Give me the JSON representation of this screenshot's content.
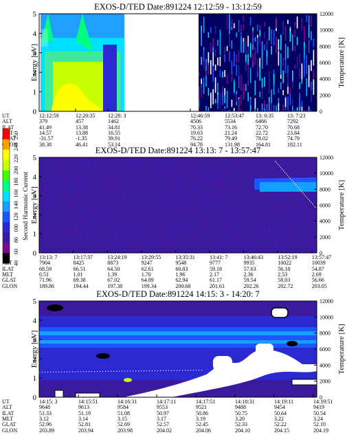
{
  "chart_data": [
    {
      "type": "heatmap",
      "title": "EXOS-D/TED   Date:891224   12:12:59 - 13:12:59",
      "ylabel": "Energy [eV]",
      "ylabel_right": "Temperature [K]",
      "ylim": [
        0,
        5
      ],
      "ylim_right": [
        0,
        12000
      ],
      "y_ticks": [
        "0",
        "1",
        "2",
        "3",
        "4",
        "5"
      ],
      "y_right_ticks": [
        "0",
        "2000",
        "4000",
        "6000",
        "8000",
        "10000",
        "12000"
      ],
      "table_row_labels": [
        "UT",
        "ALT",
        "ILAT",
        "MLT",
        "GLAT",
        "GLON"
      ],
      "table_columns": [
        [
          "12:12:59",
          "379",
          "41.49",
          "14.57",
          "-31.57",
          "38.38"
        ],
        [
          "12:20:35",
          "457",
          "13.38",
          "13.88",
          "-1.35",
          "46.41"
        ],
        [
          "12:28: 3",
          "1462",
          "34.81",
          "16.55",
          "39.91",
          "53.14"
        ],
        [
          "12:46:59",
          "4506",
          "70.33",
          "19.63",
          "76.22",
          "94.78"
        ],
        [
          "12:53:47",
          "5534",
          "73.16",
          "21.24",
          "79.49",
          "131.98"
        ],
        [
          "13: 0:35",
          "6466",
          "72.70",
          "22.72",
          "78.02",
          "164.81"
        ],
        [
          "13: 7:23",
          "7292",
          "70.68",
          "23.84",
          "74.79",
          "182.11"
        ]
      ]
    },
    {
      "type": "heatmap",
      "title": "EXOS-D/TED   Date:891224   13:13: 7 - 13:57:47",
      "ylabel": "Energy [eV]",
      "ylabel_right": "Temperature [K]",
      "ylim": [
        0,
        5
      ],
      "ylim_right": [
        0,
        12000
      ],
      "y_ticks": [
        "0",
        "1",
        "2",
        "3",
        "4",
        "5"
      ],
      "y_right_ticks": [
        "0",
        "2000",
        "4000",
        "6000",
        "8000",
        "10000",
        "12000"
      ],
      "table_row_labels": [
        "UT",
        "ALT",
        "ILAT",
        "MLT",
        "GLAT",
        "GLON"
      ],
      "table_columns": [
        [
          "13:13: 7",
          "7904",
          "68.59",
          "0.51",
          "71.96",
          "189.86"
        ],
        [
          "13:17:37",
          "8425",
          "66.51",
          "1.01",
          "69.38",
          "194.44"
        ],
        [
          "13:24:19",
          "8873",
          "64.50",
          "1.39",
          "67.02",
          "197.38"
        ],
        [
          "13:29:55",
          "9247",
          "62.61",
          "1.70",
          "64.89",
          "199.34"
        ],
        [
          "13:35:31",
          "9548",
          "60.83",
          "1.96",
          "62.94",
          "200.68"
        ],
        [
          "13:41: 7",
          "9777",
          "59.18",
          "2.17",
          "61.17",
          "201.61"
        ],
        [
          "13:46:43",
          "9935",
          "57.63",
          "2.36",
          "59.54",
          "202.26"
        ],
        [
          "13:52:19",
          "10022",
          "56.18",
          "2.53",
          "58.03",
          "202.72"
        ],
        [
          "13:57:47",
          "10039",
          "54.87",
          "2.69",
          "56.66",
          "203.05"
        ]
      ]
    },
    {
      "type": "heatmap",
      "title": "EXOS-D/TED   Date:891224   14:15: 3 - 14:20: 7",
      "ylabel": "Energy [eV]",
      "ylabel_right": "Temperature [K]",
      "ylim": [
        0,
        5
      ],
      "ylim_right": [
        0,
        12000
      ],
      "y_ticks": [
        "0",
        "1",
        "2",
        "3",
        "4",
        "5"
      ],
      "y_right_ticks": [
        "0",
        "2000",
        "4000",
        "6000",
        "8000",
        "10000",
        "12000"
      ],
      "table_row_labels": [
        "UT",
        "ALT",
        "ILAT",
        "MLT",
        "GLAT",
        "GLON"
      ],
      "table_columns": [
        [
          "14:15: 3",
          "9648",
          "51.33",
          "3.12",
          "52.96",
          "203.89"
        ],
        [
          "14:15:51",
          "9613",
          "51.19",
          "3.14",
          "52.81",
          "203.94"
        ],
        [
          "14:16:31",
          "9584",
          "51.08",
          "3.15",
          "52.69",
          "203.98"
        ],
        [
          "14:17:11",
          "9553",
          "50.97",
          "3.17",
          "52.57",
          "204.02"
        ],
        [
          "14:17:51",
          "9521",
          "50.86",
          "3.19",
          "52.45",
          "204.06"
        ],
        [
          "14:18:31",
          "9488",
          "50.75",
          "3.20",
          "52.33",
          "204.10"
        ],
        [
          "14:19:11",
          "9454",
          "50.64",
          "3.22",
          "52.22",
          "204.15"
        ],
        [
          "14:19:51",
          "9419",
          "50.54",
          "3.24",
          "52.10",
          "204.19"
        ]
      ]
    }
  ],
  "colorbar": {
    "label": "Second Harmonic Current",
    "ticks": [
      "40",
      "60",
      "80",
      "100",
      "120",
      "140",
      "160",
      "180",
      "200",
      "220",
      "240",
      "250"
    ],
    "colors": [
      "#000000",
      "#7a0a8a",
      "#3b1aa0",
      "#2a2ad0",
      "#1f55ff",
      "#15a0ff",
      "#00e0ff",
      "#00ff80",
      "#40ff00",
      "#c8ff00",
      "#ffff00",
      "#ffa000",
      "#ff0000"
    ]
  }
}
